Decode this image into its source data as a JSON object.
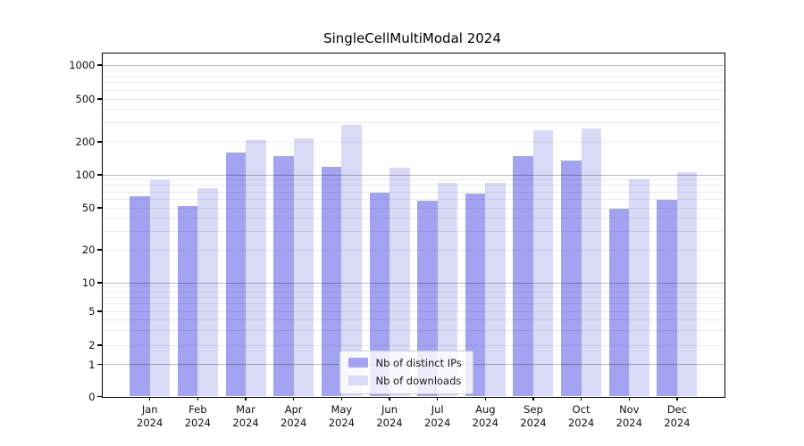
{
  "title": "SingleCellMultiModal 2024",
  "colors": {
    "ips_bar": "#a3a3f2",
    "downloads_bar": "#d9d9f8",
    "axis": "#000000",
    "legend_border": "#cccccc"
  },
  "legend": {
    "items": [
      {
        "label": "Nb of distinct IPs",
        "color": "#a3a3f2"
      },
      {
        "label": "Nb of downloads",
        "color": "#d9d9f8"
      }
    ]
  },
  "y_axis": {
    "tick_values": [
      1000,
      500,
      200,
      100,
      50,
      20,
      10,
      5,
      2,
      1,
      0
    ],
    "tick_labels": [
      "1000",
      "500",
      "200",
      "100",
      "50",
      "20",
      "10",
      "5",
      "2",
      "1",
      "0"
    ]
  },
  "x_axis": {
    "months": [
      "Jan",
      "Feb",
      "Mar",
      "Apr",
      "May",
      "Jun",
      "Jul",
      "Aug",
      "Sep",
      "Oct",
      "Nov",
      "Dec"
    ],
    "year": "2024"
  },
  "chart_data": {
    "type": "bar",
    "title": "SingleCellMultiModal 2024",
    "categories": [
      "Jan 2024",
      "Feb 2024",
      "Mar 2024",
      "Apr 2024",
      "May 2024",
      "Jun 2024",
      "Jul 2024",
      "Aug 2024",
      "Sep 2024",
      "Oct 2024",
      "Nov 2024",
      "Dec 2024"
    ],
    "series": [
      {
        "name": "Nb of distinct IPs",
        "values": [
          64,
          52,
          161,
          148,
          119,
          69,
          58,
          67,
          149,
          135,
          49,
          59
        ]
      },
      {
        "name": "Nb of downloads",
        "values": [
          90,
          75,
          207,
          217,
          289,
          117,
          84,
          84,
          257,
          265,
          91,
          106
        ]
      }
    ],
    "xlabel": "",
    "ylabel": "",
    "yscale": "symlog",
    "y_ticks": [
      0,
      1,
      2,
      5,
      10,
      20,
      50,
      100,
      200,
      500,
      1000
    ],
    "ylim": [
      0,
      1300
    ],
    "grid": true,
    "legend_position": "lower center inside"
  }
}
